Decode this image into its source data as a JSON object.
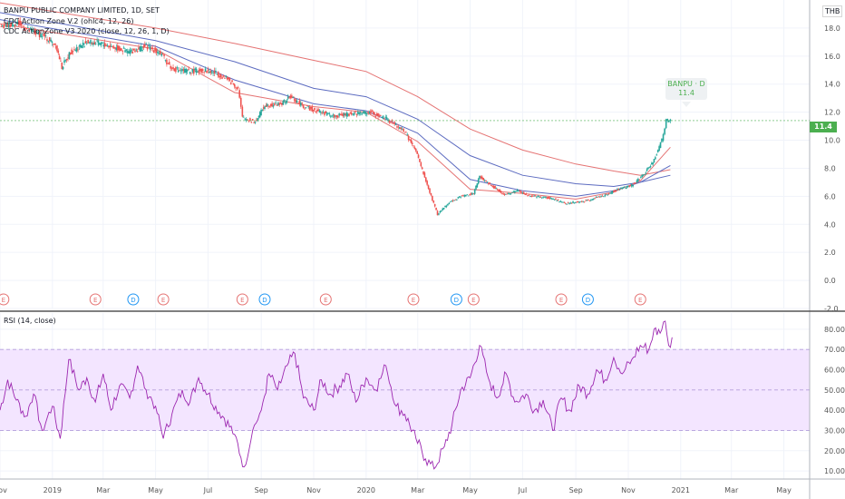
{
  "header": {
    "symbol_line": "BANPU PUBLIC COMPANY LIMITED, 1D, SET",
    "indicator_1": "CDC Action Zone V.2 (ohlc4, 12, 26)",
    "indicator_2": "CDC ActionZone V3 2020 (close, 12, 26, 1, D)"
  },
  "currency_label": "THB",
  "price_tag": {
    "label": "BANPU · D",
    "value": "11.4"
  },
  "last_price_badge": "11.4",
  "rsi_label": "RSI (14, close)",
  "colors": {
    "up": "#26a69a",
    "down": "#ef5350",
    "ema_red": "#e57373",
    "ema_blue": "#5c6bc0",
    "rsi_line": "#9c27b0",
    "rsi_band": "#f3e5ff",
    "badge": "#4caf50",
    "earnings": "#e57373",
    "dividend": "#2196f3"
  },
  "events": [
    {
      "type": "E",
      "date": "2018-11-05"
    },
    {
      "type": "E",
      "date": "2019-02-20"
    },
    {
      "type": "D",
      "date": "2019-04-05"
    },
    {
      "type": "E",
      "date": "2019-05-10"
    },
    {
      "type": "E",
      "date": "2019-08-10"
    },
    {
      "type": "D",
      "date": "2019-09-05"
    },
    {
      "type": "E",
      "date": "2019-11-15"
    },
    {
      "type": "E",
      "date": "2020-02-25"
    },
    {
      "type": "D",
      "date": "2020-04-15"
    },
    {
      "type": "E",
      "date": "2020-05-05"
    },
    {
      "type": "E",
      "date": "2020-08-15"
    },
    {
      "type": "D",
      "date": "2020-09-15"
    },
    {
      "type": "E",
      "date": "2020-11-15"
    }
  ],
  "chart_data": [
    {
      "type": "candlestick",
      "ylim": [
        -2.0,
        20.0
      ],
      "xlim": [
        "2018-11-01",
        "2021-05-31"
      ],
      "y_ticks": [
        "-2.0",
        "0.0",
        "2.0",
        "4.0",
        "6.0",
        "8.0",
        "10.0",
        "12.0",
        "14.0",
        "16.0",
        "18.0"
      ],
      "y_tick_values": [
        -2,
        0,
        2,
        4,
        6,
        8,
        10,
        12,
        14,
        16,
        18
      ],
      "x_ticks": [
        {
          "label": "Nov",
          "date": "2018-11-01"
        },
        {
          "label": "2019",
          "date": "2019-01-01"
        },
        {
          "label": "Mar",
          "date": "2019-03-01"
        },
        {
          "label": "May",
          "date": "2019-05-01"
        },
        {
          "label": "Jul",
          "date": "2019-07-01"
        },
        {
          "label": "Sep",
          "date": "2019-09-01"
        },
        {
          "label": "Nov",
          "date": "2019-11-01"
        },
        {
          "label": "2020",
          "date": "2020-01-01"
        },
        {
          "label": "Mar",
          "date": "2020-03-01"
        },
        {
          "label": "May",
          "date": "2020-05-01"
        },
        {
          "label": "Jul",
          "date": "2020-07-01"
        },
        {
          "label": "Sep",
          "date": "2020-09-01"
        },
        {
          "label": "Nov",
          "date": "2020-11-01"
        },
        {
          "label": "2021",
          "date": "2021-01-01"
        },
        {
          "label": "Mar",
          "date": "2021-03-01"
        },
        {
          "label": "May",
          "date": "2021-05-01"
        }
      ],
      "price_path": [
        [
          "2018-11-01",
          18.0
        ],
        [
          "2018-11-20",
          18.4
        ],
        [
          "2018-12-05",
          17.8
        ],
        [
          "2018-12-20",
          17.5
        ],
        [
          "2019-01-05",
          16.8
        ],
        [
          "2019-01-12",
          15.2
        ],
        [
          "2019-01-22",
          16.3
        ],
        [
          "2019-02-10",
          17.0
        ],
        [
          "2019-02-25",
          16.9
        ],
        [
          "2019-03-15",
          16.6
        ],
        [
          "2019-03-31",
          16.3
        ],
        [
          "2019-04-20",
          16.7
        ],
        [
          "2019-05-05",
          16.3
        ],
        [
          "2019-05-20",
          15.1
        ],
        [
          "2019-06-10",
          14.9
        ],
        [
          "2019-06-25",
          15.0
        ],
        [
          "2019-07-10",
          14.8
        ],
        [
          "2019-07-25",
          14.3
        ],
        [
          "2019-08-05",
          13.7
        ],
        [
          "2019-08-10",
          11.6
        ],
        [
          "2019-08-25",
          11.3
        ],
        [
          "2019-09-05",
          12.5
        ],
        [
          "2019-09-25",
          12.6
        ],
        [
          "2019-10-05",
          13.1
        ],
        [
          "2019-10-20",
          12.4
        ],
        [
          "2019-11-05",
          12.1
        ],
        [
          "2019-11-25",
          11.7
        ],
        [
          "2019-12-15",
          11.9
        ],
        [
          "2020-01-05",
          12.0
        ],
        [
          "2020-01-25",
          11.5
        ],
        [
          "2020-02-15",
          10.6
        ],
        [
          "2020-02-28",
          9.2
        ],
        [
          "2020-03-12",
          6.8
        ],
        [
          "2020-03-24",
          4.7
        ],
        [
          "2020-04-05",
          5.5
        ],
        [
          "2020-04-20",
          6.0
        ],
        [
          "2020-05-05",
          6.2
        ],
        [
          "2020-05-12",
          7.4
        ],
        [
          "2020-05-30",
          6.6
        ],
        [
          "2020-06-10",
          6.1
        ],
        [
          "2020-06-25",
          6.4
        ],
        [
          "2020-07-10",
          6.0
        ],
        [
          "2020-07-31",
          5.9
        ],
        [
          "2020-08-20",
          5.5
        ],
        [
          "2020-09-05",
          5.6
        ],
        [
          "2020-09-20",
          5.8
        ],
        [
          "2020-10-05",
          6.1
        ],
        [
          "2020-10-25",
          6.6
        ],
        [
          "2020-11-05",
          6.8
        ],
        [
          "2020-11-20",
          7.6
        ],
        [
          "2020-12-01",
          8.6
        ],
        [
          "2020-12-10",
          10.0
        ],
        [
          "2020-12-15",
          11.4
        ],
        [
          "2020-12-20",
          11.4
        ]
      ],
      "sma_paths": [
        {
          "color_key": "ema_red",
          "points": [
            [
              "2018-11-01",
              19.8
            ],
            [
              "2019-05-01",
              18.0
            ],
            [
              "2019-08-01",
              16.9
            ],
            [
              "2019-11-01",
              15.7
            ],
            [
              "2020-01-01",
              14.9
            ],
            [
              "2020-03-01",
              13.1
            ],
            [
              "2020-05-01",
              10.8
            ],
            [
              "2020-07-01",
              9.3
            ],
            [
              "2020-09-01",
              8.3
            ],
            [
              "2020-10-15",
              7.8
            ],
            [
              "2020-11-15",
              7.5
            ],
            [
              "2020-12-20",
              7.9
            ]
          ]
        },
        {
          "color_key": "ema_blue",
          "points": [
            [
              "2018-11-01",
              19.1
            ],
            [
              "2019-05-01",
              17.1
            ],
            [
              "2019-08-01",
              15.6
            ],
            [
              "2019-11-01",
              13.7
            ],
            [
              "2020-01-01",
              13.1
            ],
            [
              "2020-03-01",
              11.5
            ],
            [
              "2020-05-01",
              8.9
            ],
            [
              "2020-07-01",
              7.5
            ],
            [
              "2020-09-01",
              6.9
            ],
            [
              "2020-10-15",
              6.7
            ],
            [
              "2020-11-15",
              7.0
            ],
            [
              "2020-12-20",
              7.5
            ]
          ]
        },
        {
          "color_key": "ema_blue",
          "points": [
            [
              "2018-11-01",
              18.6
            ],
            [
              "2019-05-01",
              16.7
            ],
            [
              "2019-08-01",
              14.3
            ],
            [
              "2019-11-01",
              12.6
            ],
            [
              "2020-01-01",
              12.1
            ],
            [
              "2020-03-01",
              10.5
            ],
            [
              "2020-05-01",
              7.2
            ],
            [
              "2020-07-01",
              6.4
            ],
            [
              "2020-09-01",
              6.0
            ],
            [
              "2020-10-15",
              6.4
            ],
            [
              "2020-11-15",
              7.0
            ],
            [
              "2020-12-20",
              8.2
            ]
          ]
        },
        {
          "color_key": "ema_red",
          "points": [
            [
              "2018-11-01",
              18.3
            ],
            [
              "2019-05-01",
              16.5
            ],
            [
              "2019-08-01",
              13.4
            ],
            [
              "2019-11-01",
              12.4
            ],
            [
              "2020-01-01",
              12.0
            ],
            [
              "2020-03-01",
              9.9
            ],
            [
              "2020-05-01",
              6.5
            ],
            [
              "2020-07-01",
              6.2
            ],
            [
              "2020-09-01",
              5.8
            ],
            [
              "2020-10-15",
              6.3
            ],
            [
              "2020-11-15",
              7.1
            ],
            [
              "2020-12-20",
              9.5
            ]
          ]
        }
      ]
    },
    {
      "type": "line",
      "title": "RSI (14, close)",
      "ylim": [
        6,
        88
      ],
      "y_ticks": [
        "10.00",
        "20.00",
        "30.00",
        "40.00",
        "50.00",
        "60.00",
        "70.00",
        "80.00"
      ],
      "y_tick_values": [
        10,
        20,
        30,
        40,
        50,
        60,
        70,
        80
      ],
      "band": [
        30,
        70
      ],
      "points": [
        [
          "2018-11-01",
          40
        ],
        [
          "2018-11-10",
          55
        ],
        [
          "2018-11-20",
          45
        ],
        [
          "2018-12-01",
          37
        ],
        [
          "2018-12-10",
          48
        ],
        [
          "2018-12-20",
          30
        ],
        [
          "2019-01-01",
          42
        ],
        [
          "2019-01-10",
          26
        ],
        [
          "2019-01-20",
          65
        ],
        [
          "2019-02-01",
          50
        ],
        [
          "2019-02-10",
          56
        ],
        [
          "2019-02-20",
          44
        ],
        [
          "2019-03-01",
          58
        ],
        [
          "2019-03-10",
          40
        ],
        [
          "2019-03-20",
          52
        ],
        [
          "2019-04-01",
          46
        ],
        [
          "2019-04-10",
          62
        ],
        [
          "2019-04-20",
          50
        ],
        [
          "2019-05-01",
          42
        ],
        [
          "2019-05-10",
          26
        ],
        [
          "2019-05-20",
          38
        ],
        [
          "2019-06-01",
          50
        ],
        [
          "2019-06-10",
          44
        ],
        [
          "2019-06-20",
          56
        ],
        [
          "2019-07-01",
          48
        ],
        [
          "2019-07-10",
          42
        ],
        [
          "2019-07-20",
          36
        ],
        [
          "2019-08-01",
          28
        ],
        [
          "2019-08-12",
          12
        ],
        [
          "2019-08-22",
          30
        ],
        [
          "2019-09-01",
          40
        ],
        [
          "2019-09-10",
          58
        ],
        [
          "2019-09-20",
          50
        ],
        [
          "2019-10-01",
          62
        ],
        [
          "2019-10-10",
          68
        ],
        [
          "2019-10-20",
          46
        ],
        [
          "2019-11-01",
          40
        ],
        [
          "2019-11-10",
          55
        ],
        [
          "2019-11-20",
          48
        ],
        [
          "2019-12-01",
          52
        ],
        [
          "2019-12-10",
          58
        ],
        [
          "2019-12-20",
          44
        ],
        [
          "2020-01-01",
          56
        ],
        [
          "2020-01-12",
          50
        ],
        [
          "2020-01-24",
          62
        ],
        [
          "2020-02-05",
          42
        ],
        [
          "2020-02-15",
          38
        ],
        [
          "2020-02-28",
          26
        ],
        [
          "2020-03-10",
          16
        ],
        [
          "2020-03-20",
          11
        ],
        [
          "2020-04-01",
          22
        ],
        [
          "2020-04-10",
          33
        ],
        [
          "2020-04-20",
          50
        ],
        [
          "2020-05-01",
          56
        ],
        [
          "2020-05-12",
          72
        ],
        [
          "2020-05-22",
          56
        ],
        [
          "2020-06-01",
          46
        ],
        [
          "2020-06-12",
          58
        ],
        [
          "2020-06-22",
          44
        ],
        [
          "2020-07-05",
          48
        ],
        [
          "2020-07-15",
          40
        ],
        [
          "2020-07-25",
          45
        ],
        [
          "2020-08-05",
          30
        ],
        [
          "2020-08-15",
          46
        ],
        [
          "2020-08-25",
          40
        ],
        [
          "2020-09-05",
          52
        ],
        [
          "2020-09-15",
          48
        ],
        [
          "2020-09-25",
          60
        ],
        [
          "2020-10-05",
          55
        ],
        [
          "2020-10-15",
          66
        ],
        [
          "2020-10-25",
          58
        ],
        [
          "2020-11-05",
          65
        ],
        [
          "2020-11-15",
          72
        ],
        [
          "2020-11-25",
          70
        ],
        [
          "2020-12-01",
          80
        ],
        [
          "2020-12-08",
          78
        ],
        [
          "2020-12-14",
          84
        ],
        [
          "2020-12-18",
          72
        ],
        [
          "2020-12-22",
          76
        ]
      ]
    }
  ]
}
